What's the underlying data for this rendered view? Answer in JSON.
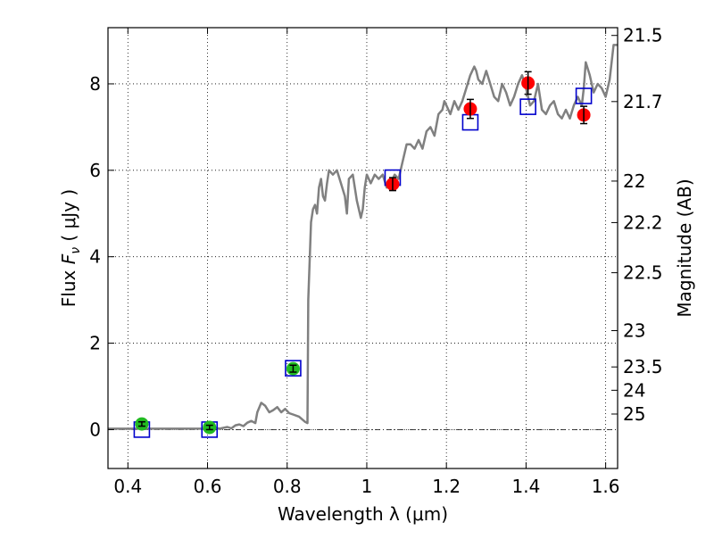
{
  "chart_data": {
    "type": "scatter",
    "xlabel": "Wavelength  λ (μm)",
    "ylabel": "Flux  F_ν  ( μJy )",
    "ylabel_parts": {
      "prefix": "Flux  ",
      "symbol": "F",
      "subscript": "ν",
      "suffix": "  ( μJy )"
    },
    "y2label": "Magnitude (AB)",
    "xlim": [
      0.35,
      1.63
    ],
    "ylim": [
      -0.9,
      9.3
    ],
    "grid": true,
    "x_ticks": [
      0.4,
      0.6,
      0.8,
      1.0,
      1.2,
      1.4,
      1.6
    ],
    "x_tick_labels": [
      "0.4",
      "0.6",
      "0.8",
      "1",
      "1.2",
      "1.4",
      "1.6"
    ],
    "y_ticks": [
      0,
      2,
      4,
      6,
      8
    ],
    "y_tick_labels": [
      "0",
      "2",
      "4",
      "6",
      "8"
    ],
    "y2_ticks": [
      {
        "label": "21.5",
        "flux": 9.12
      },
      {
        "label": "21.7",
        "flux": 7.59
      },
      {
        "label": "22",
        "flux": 5.75
      },
      {
        "label": "22.2",
        "flux": 4.79
      },
      {
        "label": "22.5",
        "flux": 3.63
      },
      {
        "label": "23",
        "flux": 2.29
      },
      {
        "label": "23.5",
        "flux": 1.45
      },
      {
        "label": "24",
        "flux": 0.91
      },
      {
        "label": "25",
        "flux": 0.36
      }
    ],
    "series": [
      {
        "kind": "line",
        "color": "#808080",
        "x": [
          0.35,
          0.43,
          0.5,
          0.6,
          0.62,
          0.63,
          0.65,
          0.66,
          0.67,
          0.68,
          0.69,
          0.7,
          0.71,
          0.72,
          0.725,
          0.735,
          0.745,
          0.755,
          0.765,
          0.775,
          0.785,
          0.795,
          0.805,
          0.815,
          0.83,
          0.845,
          0.851,
          0.853,
          0.86,
          0.865,
          0.87,
          0.875,
          0.88,
          0.885,
          0.89,
          0.895,
          0.9,
          0.905,
          0.915,
          0.925,
          0.935,
          0.945,
          0.95,
          0.955,
          0.965,
          0.975,
          0.985,
          0.99,
          0.995,
          1.0,
          1.01,
          1.02,
          1.03,
          1.04,
          1.05,
          1.06,
          1.07,
          1.08,
          1.09,
          1.1,
          1.11,
          1.12,
          1.13,
          1.14,
          1.15,
          1.16,
          1.17,
          1.18,
          1.19,
          1.195,
          1.2,
          1.205,
          1.21,
          1.22,
          1.23,
          1.24,
          1.25,
          1.26,
          1.27,
          1.275,
          1.28,
          1.29,
          1.3,
          1.31,
          1.32,
          1.33,
          1.34,
          1.35,
          1.36,
          1.37,
          1.38,
          1.39,
          1.4,
          1.41,
          1.42,
          1.43,
          1.44,
          1.45,
          1.46,
          1.47,
          1.48,
          1.49,
          1.5,
          1.51,
          1.52,
          1.53,
          1.54,
          1.545,
          1.55,
          1.56,
          1.57,
          1.58,
          1.59,
          1.6,
          1.61,
          1.62,
          1.63
        ],
        "y": [
          0.02,
          0.02,
          0.02,
          0.02,
          0.04,
          0.02,
          0.06,
          0.03,
          0.1,
          0.12,
          0.08,
          0.16,
          0.2,
          0.15,
          0.4,
          0.62,
          0.55,
          0.4,
          0.45,
          0.52,
          0.4,
          0.48,
          0.38,
          0.35,
          0.3,
          0.18,
          0.15,
          3.0,
          4.8,
          5.1,
          5.2,
          5.0,
          5.6,
          5.8,
          5.4,
          5.3,
          5.7,
          6.0,
          5.9,
          6.0,
          5.7,
          5.4,
          5.0,
          5.8,
          5.9,
          5.3,
          4.9,
          5.1,
          5.6,
          5.9,
          5.7,
          5.9,
          5.8,
          5.9,
          5.6,
          5.7,
          5.9,
          5.8,
          6.2,
          6.6,
          6.6,
          6.5,
          6.7,
          6.5,
          6.9,
          7.0,
          6.8,
          7.3,
          7.4,
          7.6,
          7.5,
          7.4,
          7.3,
          7.6,
          7.4,
          7.6,
          7.9,
          8.2,
          8.4,
          8.3,
          8.1,
          8.0,
          8.3,
          8.0,
          7.7,
          7.6,
          8.0,
          7.8,
          7.5,
          7.7,
          8.0,
          8.2,
          7.9,
          7.5,
          7.6,
          8.0,
          7.4,
          7.3,
          7.5,
          7.6,
          7.3,
          7.2,
          7.4,
          7.2,
          7.5,
          7.7,
          7.5,
          7.9,
          8.5,
          8.2,
          7.8,
          8.0,
          7.9,
          7.7,
          8.1,
          8.9,
          8.9
        ]
      },
      {
        "kind": "open_square",
        "color": "#0000cc",
        "x": [
          0.435,
          0.605,
          0.815,
          1.065,
          1.26,
          1.405,
          1.545
        ],
        "y": [
          0.0,
          0.0,
          1.42,
          5.83,
          7.11,
          7.47,
          7.72
        ]
      },
      {
        "kind": "point_errorbar",
        "color": "#22bb22",
        "x": [
          0.435,
          0.605,
          0.815
        ],
        "y": [
          0.13,
          0.05,
          1.41
        ],
        "err": [
          0.05,
          0.05,
          0.08
        ]
      },
      {
        "kind": "point_errorbar",
        "color": "#ff0000",
        "x": [
          1.065,
          1.26,
          1.405,
          1.545
        ],
        "y": [
          5.68,
          7.42,
          8.02,
          7.28
        ],
        "err": [
          0.15,
          0.22,
          0.26,
          0.2
        ]
      }
    ]
  }
}
